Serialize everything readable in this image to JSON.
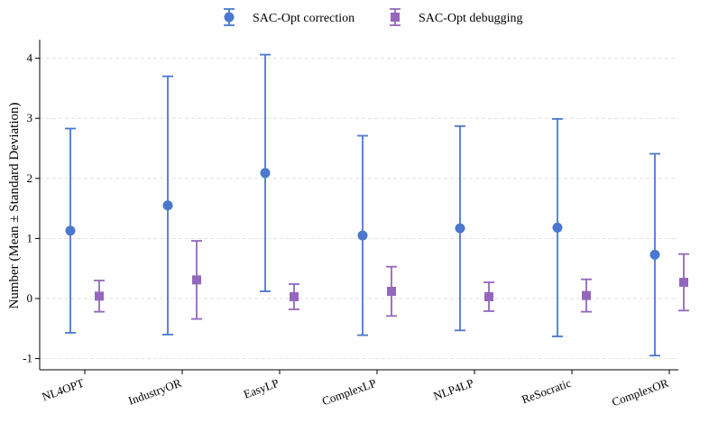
{
  "chart_data": {
    "type": "errorbar",
    "title": "",
    "xlabel": "",
    "ylabel": "Number (Mean ± Standard Deviation)",
    "ylim": [
      -1.2,
      4.3
    ],
    "yticks": [
      -1,
      0,
      1,
      2,
      3,
      4
    ],
    "grid": "horizontal-dashed",
    "legend_position": "top-center",
    "categories": [
      "NL4OPT",
      "IndustryOR",
      "EasyLP",
      "ComplexLP",
      "NLP4LP",
      "ReSocratic",
      "ComplexOR"
    ],
    "series": [
      {
        "name": "SAC-Opt correction",
        "marker": "circle",
        "color": "#4a78cf",
        "means": [
          1.13,
          1.55,
          2.09,
          1.05,
          1.17,
          1.18,
          0.73
        ],
        "std": [
          1.7,
          2.15,
          1.97,
          1.66,
          1.7,
          1.81,
          1.68
        ]
      },
      {
        "name": "SAC-Opt debugging",
        "marker": "square",
        "color": "#9467bd",
        "means": [
          0.04,
          0.31,
          0.03,
          0.12,
          0.03,
          0.05,
          0.27
        ],
        "std": [
          0.26,
          0.65,
          0.21,
          0.41,
          0.24,
          0.27,
          0.47
        ]
      }
    ]
  }
}
